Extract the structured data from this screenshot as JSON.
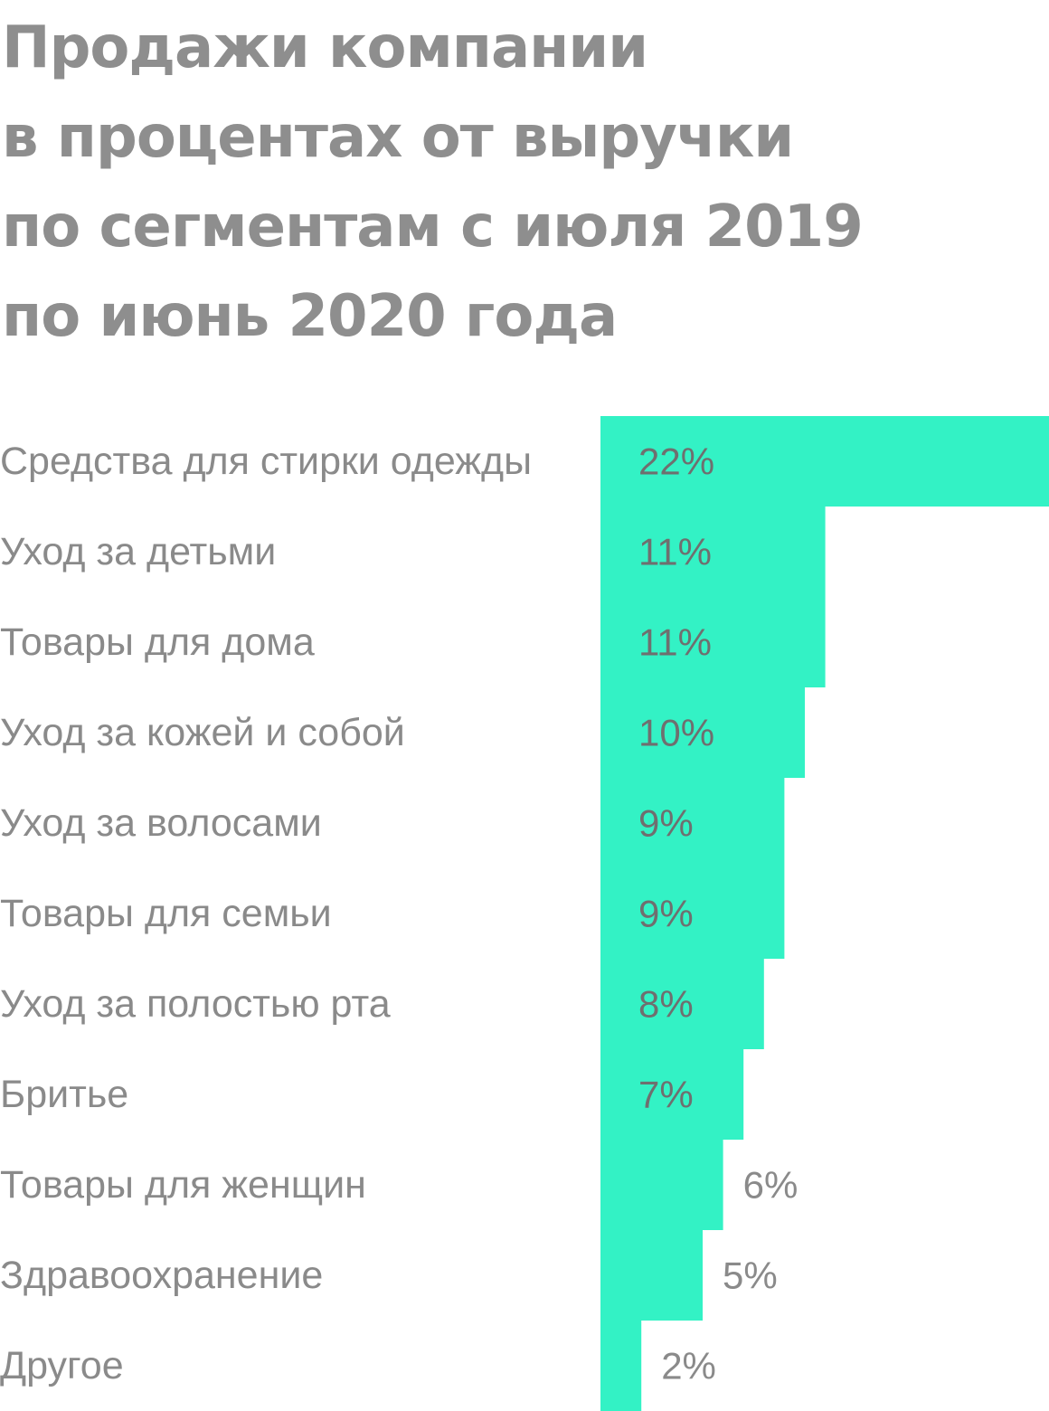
{
  "title_lines": [
    "Продажи компании",
    "в процентах от выручки",
    "по сегментам с июля 2019",
    "по июнь 2020 года"
  ],
  "colors": {
    "bar": "#33f2c5",
    "title": "#8e8e8e",
    "label": "#8a8a8a",
    "value_inside": "#6f6f6f"
  },
  "chart_data": {
    "type": "bar",
    "orientation": "horizontal",
    "title": "Продажи компании в процентах от выручки по сегментам с июля 2019 по июнь 2020 года",
    "categories": [
      "Средства для стирки одежды",
      "Уход за детьми",
      "Товары для дома",
      "Уход за кожей и собой",
      "Уход за волосами",
      "Товары для семьи",
      "Уход за полостью рта",
      "Бритье",
      "Товары для женщин",
      "Здравоохранение",
      "Другое"
    ],
    "values": [
      22,
      11,
      11,
      10,
      9,
      9,
      8,
      7,
      6,
      5,
      2
    ],
    "value_labels": [
      "22%",
      "11%",
      "11%",
      "10%",
      "9%",
      "9%",
      "8%",
      "7%",
      "6%",
      "5%",
      "2%"
    ],
    "unit": "%",
    "grid": false,
    "legend": "none"
  }
}
